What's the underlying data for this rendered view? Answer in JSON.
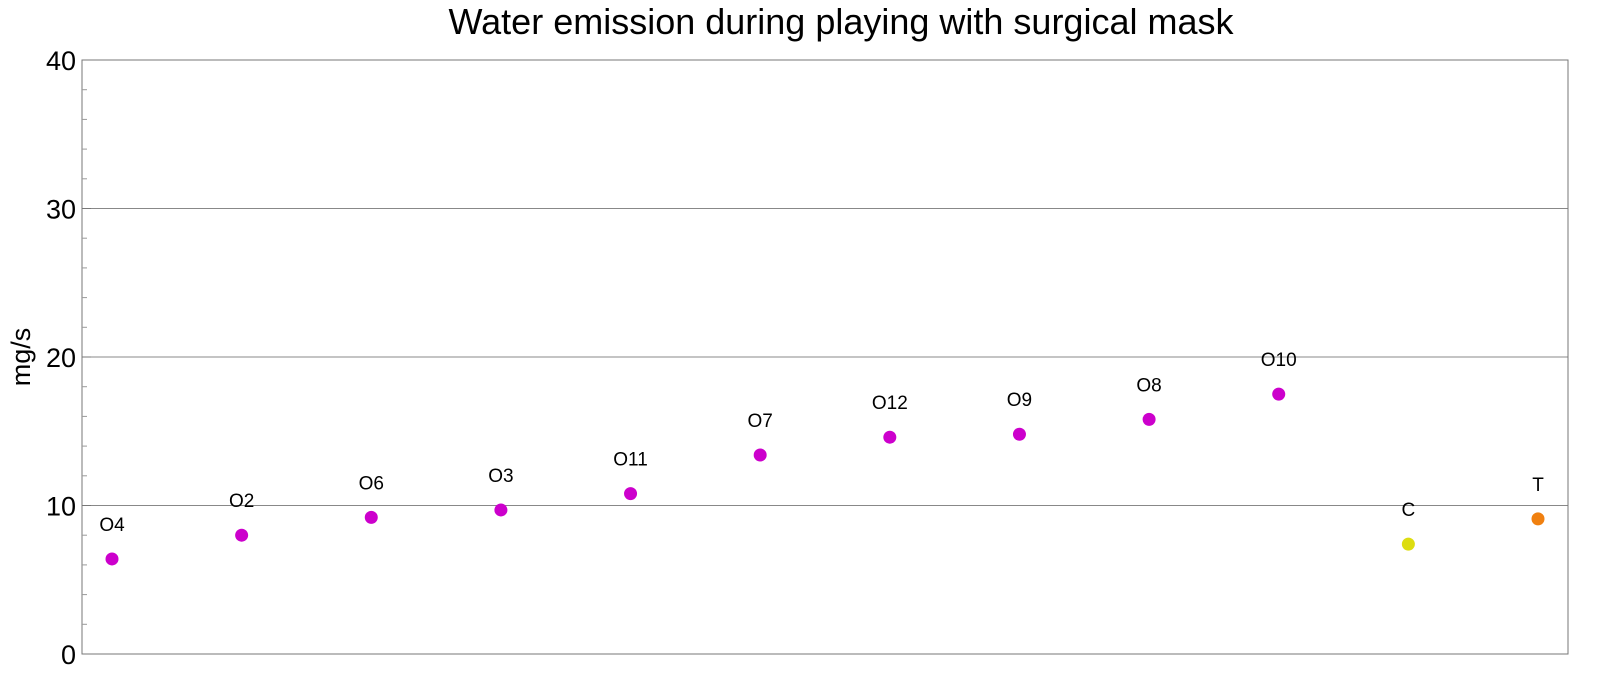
{
  "chart_data": {
    "type": "scatter",
    "title": "Water emission during playing with surgical mask",
    "xlabel": "",
    "ylabel": "mg/s",
    "ylim": [
      0,
      40
    ],
    "yticks": [
      0,
      10,
      20,
      30,
      40
    ],
    "grid": "horizontal",
    "points": [
      {
        "label": "O4",
        "value": 6.4,
        "color": "#cc00cc"
      },
      {
        "label": "O2",
        "value": 8.0,
        "color": "#cc00cc"
      },
      {
        "label": "O6",
        "value": 9.2,
        "color": "#cc00cc"
      },
      {
        "label": "O3",
        "value": 9.7,
        "color": "#cc00cc"
      },
      {
        "label": "O11",
        "value": 10.8,
        "color": "#cc00cc"
      },
      {
        "label": "O7",
        "value": 13.4,
        "color": "#cc00cc"
      },
      {
        "label": "O12",
        "value": 14.6,
        "color": "#cc00cc"
      },
      {
        "label": "O9",
        "value": 14.8,
        "color": "#cc00cc"
      },
      {
        "label": "O8",
        "value": 15.8,
        "color": "#cc00cc"
      },
      {
        "label": "O10",
        "value": 17.5,
        "color": "#cc00cc"
      },
      {
        "label": "C",
        "value": 7.4,
        "color": "#dddd10"
      },
      {
        "label": "T",
        "value": 9.1,
        "color": "#f08010"
      }
    ]
  }
}
